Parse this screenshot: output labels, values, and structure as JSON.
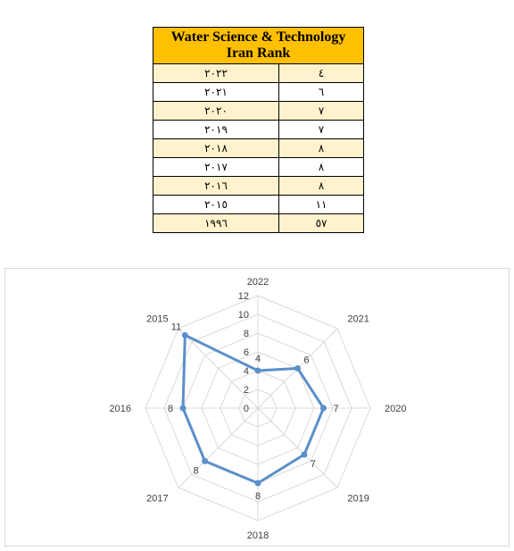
{
  "table": {
    "title_line1": "Water Science & Technology",
    "title_line2": "Iran Rank",
    "rows": [
      {
        "year": "٢٠٢٢",
        "rank": "٤"
      },
      {
        "year": "٢٠٢١",
        "rank": "٦"
      },
      {
        "year": "٢٠٢٠",
        "rank": "٧"
      },
      {
        "year": "٢٠١٩",
        "rank": "٧"
      },
      {
        "year": "٢٠١٨",
        "rank": "٨"
      },
      {
        "year": "٢٠١٧",
        "rank": "٨"
      },
      {
        "year": "٢٠١٦",
        "rank": "٨"
      },
      {
        "year": "٢٠١٥",
        "rank": "١١"
      },
      {
        "year": "١٩٩٦",
        "rank": "٥٧"
      }
    ]
  },
  "chart_data": {
    "type": "radar",
    "categories": [
      "2022",
      "2021",
      "2020",
      "2019",
      "2018",
      "2017",
      "2016",
      "2015"
    ],
    "series": [
      {
        "values": [
          4,
          6,
          7,
          7,
          8,
          8,
          8,
          11
        ],
        "color": "#5b8fc9"
      }
    ],
    "rlim": [
      0,
      12
    ],
    "ticks": [
      "0",
      "2",
      "4",
      "6",
      "8",
      "10",
      "12"
    ],
    "data_labels": [
      "4",
      "6",
      "7",
      "7",
      "8",
      "8",
      "8",
      "11"
    ],
    "grid": true,
    "grid_color": "#d9d9d9",
    "legend": "none"
  }
}
